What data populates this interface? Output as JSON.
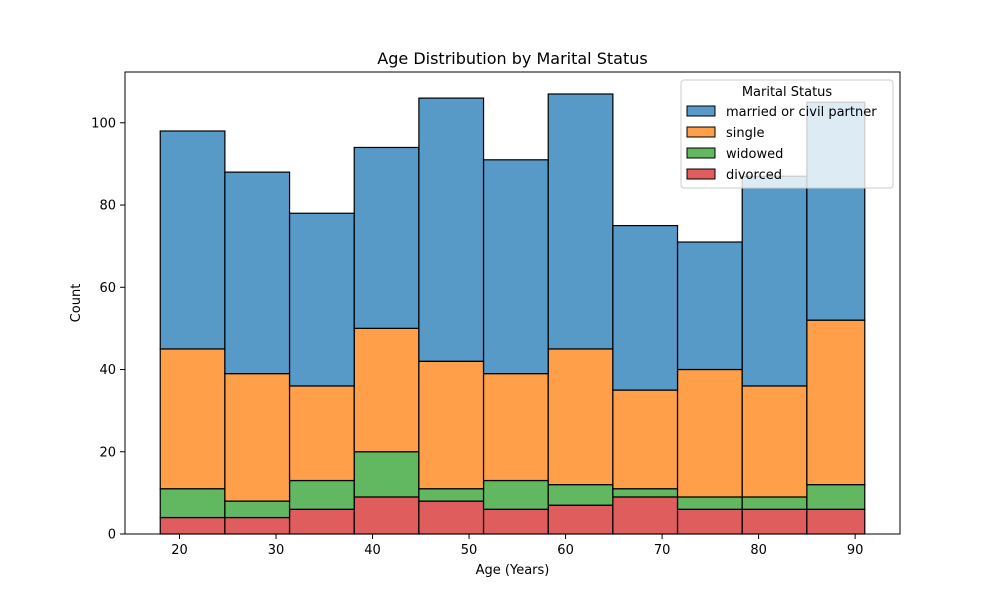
{
  "chart_data": {
    "type": "bar",
    "stacked": true,
    "title": "Age Distribution by Marital Status",
    "xlabel": "Age (Years)",
    "ylabel": "Count",
    "xlim": [
      14.35,
      94.65
    ],
    "ylim": [
      0,
      112.35
    ],
    "x_ticks": [
      20,
      30,
      40,
      50,
      60,
      70,
      80,
      90
    ],
    "y_ticks": [
      0,
      20,
      40,
      60,
      80,
      100
    ],
    "bin_edges": [
      18,
      24.7,
      31.4,
      38.1,
      44.8,
      51.5,
      58.2,
      64.9,
      71.6,
      78.3,
      85,
      91
    ],
    "legend": {
      "title": "Marital Status",
      "placement": "upper right"
    },
    "series": [
      {
        "name": "divorced",
        "color": "#d62728",
        "values": [
          4,
          4,
          6,
          9,
          8,
          6,
          7,
          9,
          6,
          6,
          6
        ]
      },
      {
        "name": "widowed",
        "color": "#2ca02c",
        "values": [
          7,
          4,
          7,
          11,
          3,
          7,
          5,
          2,
          3,
          3,
          6
        ]
      },
      {
        "name": "single",
        "color": "#ff7f0e",
        "values": [
          34,
          31,
          23,
          30,
          31,
          26,
          33,
          24,
          31,
          27,
          40
        ]
      },
      {
        "name": "married or civil partner",
        "color": "#1f77b4",
        "values": [
          53,
          49,
          42,
          44,
          64,
          52,
          62,
          40,
          31,
          51,
          53
        ]
      }
    ],
    "legend_order": [
      "married or civil partner",
      "single",
      "widowed",
      "divorced"
    ],
    "grid": false
  }
}
